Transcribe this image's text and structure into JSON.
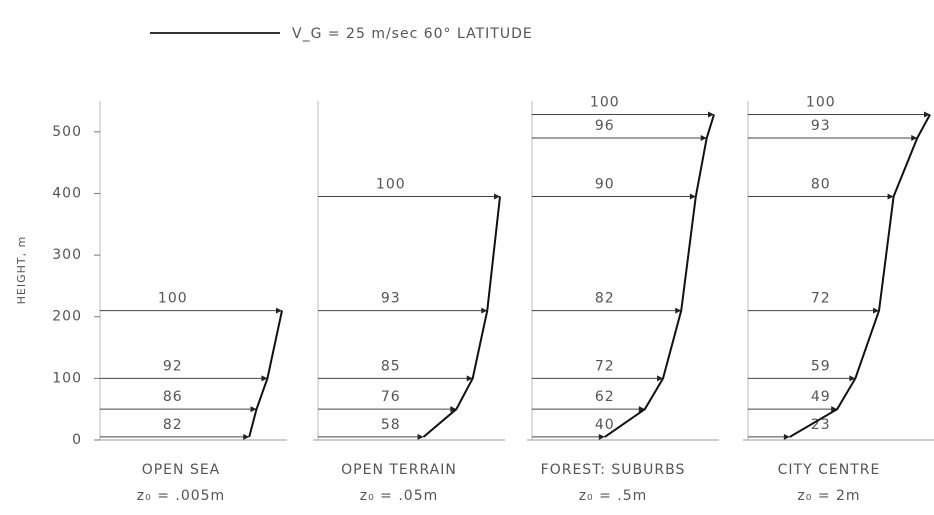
{
  "legend": "V_G = 25 m/sec 60° LATITUDE",
  "chart_data": [
    {
      "type": "profile",
      "title": "OPEN SEA",
      "subtitle": "z₀ = .005m",
      "ylabel": "HEIGHT, m",
      "ylim": [
        0,
        550
      ],
      "yticks": [
        0,
        100,
        200,
        300,
        400,
        500
      ],
      "xlim": [
        0,
        100
      ],
      "y": [
        5,
        50,
        100,
        210
      ],
      "values": [
        82,
        86,
        92,
        100
      ]
    },
    {
      "type": "profile",
      "title": "OPEN TERRAIN",
      "subtitle": "z₀ = .05m",
      "ylim": [
        0,
        550
      ],
      "xlim": [
        0,
        100
      ],
      "y": [
        5,
        50,
        100,
        210,
        395
      ],
      "values": [
        58,
        76,
        85,
        93,
        100
      ]
    },
    {
      "type": "profile",
      "title": "FOREST: SUBURBS",
      "subtitle": "z₀ = .5m",
      "ylim": [
        0,
        550
      ],
      "xlim": [
        0,
        100
      ],
      "y": [
        5,
        50,
        100,
        210,
        395,
        490,
        528
      ],
      "values": [
        40,
        62,
        72,
        82,
        90,
        96,
        100
      ]
    },
    {
      "type": "profile",
      "title": "CITY CENTRE",
      "subtitle": "z₀ = 2m",
      "ylim": [
        0,
        550
      ],
      "xlim": [
        0,
        100
      ],
      "y": [
        5,
        50,
        100,
        210,
        395,
        490,
        528
      ],
      "values": [
        23,
        49,
        59,
        72,
        80,
        93,
        100
      ]
    }
  ]
}
